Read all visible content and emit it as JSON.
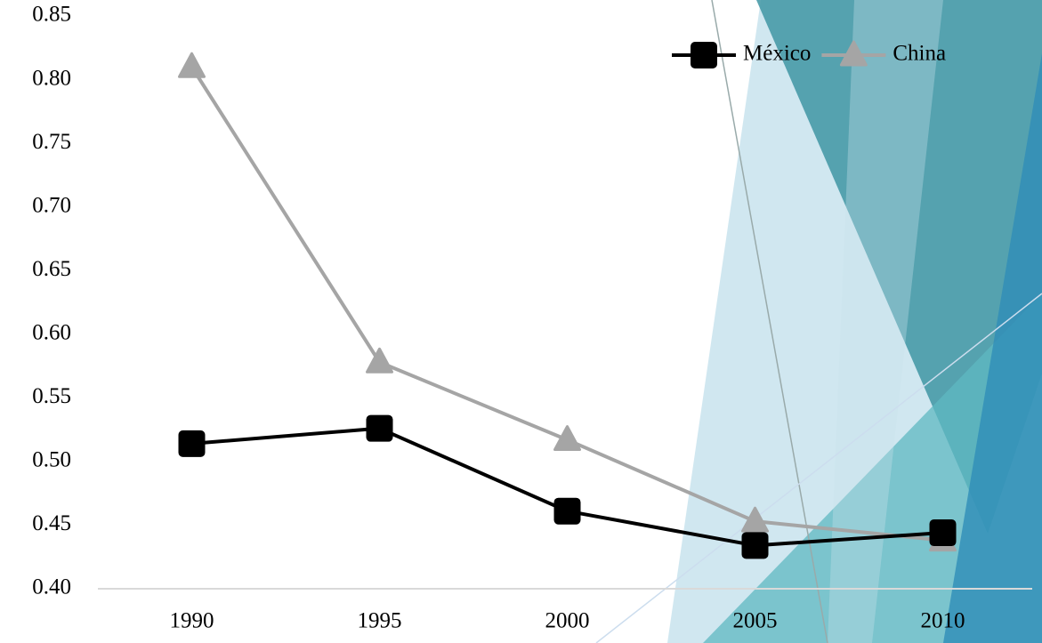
{
  "chart_data": {
    "type": "line",
    "categories": [
      "1990",
      "1995",
      "2000",
      "2005",
      "2010"
    ],
    "series": [
      {
        "name": "México",
        "color": "#000000",
        "marker": "square",
        "values": [
          0.514,
          0.526,
          0.461,
          0.434,
          0.444
        ]
      },
      {
        "name": "China",
        "color": "#a5a5a5",
        "marker": "triangle",
        "values": [
          0.81,
          0.578,
          0.517,
          0.453,
          0.438
        ]
      }
    ],
    "ylim": [
      0.4,
      0.85
    ],
    "yticks": [
      {
        "value": 0.4,
        "label": "0.40"
      },
      0.45,
      {
        "value": 0.5,
        "label": "0.50"
      },
      0.55,
      {
        "value": 0.6,
        "label": "0.60"
      },
      0.65,
      {
        "value": 0.7,
        "label": "0.70"
      },
      0.75,
      {
        "value": 0.8,
        "label": "0.80"
      },
      0.85
    ],
    "grid": false,
    "legend": "top-right"
  }
}
